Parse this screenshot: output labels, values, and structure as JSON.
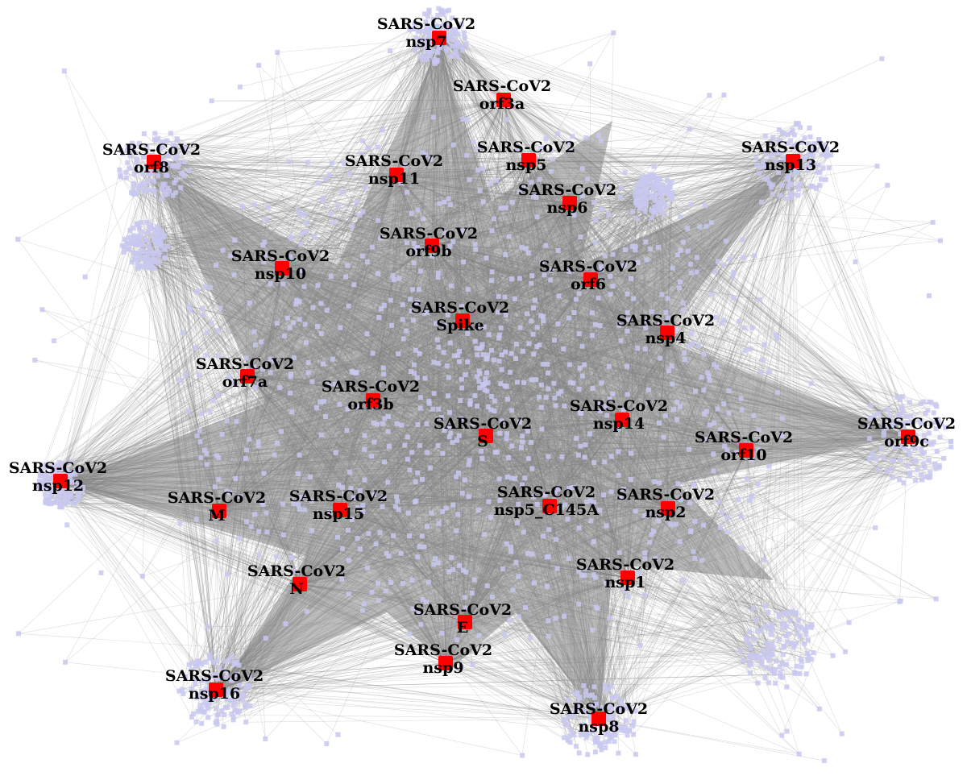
{
  "network": {
    "node_color": "#ff0000",
    "host_node_color": "#c8c8f0",
    "edge_color": "#808080",
    "viral_proteins": [
      {
        "id": "nsp7",
        "line1": "SARS-CoV2",
        "line2": "nsp7"
      },
      {
        "id": "orf3a",
        "line1": "SARS-CoV2",
        "line2": "orf3a"
      },
      {
        "id": "nsp5",
        "line1": "SARS-CoV2",
        "line2": "nsp5"
      },
      {
        "id": "orf8",
        "line1": "SARS-CoV2",
        "line2": "orf8"
      },
      {
        "id": "nsp13",
        "line1": "SARS-CoV2",
        "line2": "nsp13"
      },
      {
        "id": "nsp11",
        "line1": "SARS-CoV2",
        "line2": "nsp11"
      },
      {
        "id": "nsp6",
        "line1": "SARS-CoV2",
        "line2": "nsp6"
      },
      {
        "id": "orf9b",
        "line1": "SARS-CoV2",
        "line2": "orf9b"
      },
      {
        "id": "nsp10",
        "line1": "SARS-CoV2",
        "line2": "nsp10"
      },
      {
        "id": "orf6",
        "line1": "SARS-CoV2",
        "line2": "orf6"
      },
      {
        "id": "spike",
        "line1": "SARS-CoV2",
        "line2": "Spike"
      },
      {
        "id": "nsp4",
        "line1": "SARS-CoV2",
        "line2": "nsp4"
      },
      {
        "id": "orf7a",
        "line1": "SARS-CoV2",
        "line2": "orf7a"
      },
      {
        "id": "orf3b",
        "line1": "SARS-CoV2",
        "line2": "orf3b"
      },
      {
        "id": "nsp14",
        "line1": "SARS-CoV2",
        "line2": "nsp14"
      },
      {
        "id": "orf9c",
        "line1": "SARS-CoV2",
        "line2": "orf9c"
      },
      {
        "id": "s",
        "line1": "SARS-CoV2",
        "line2": "S"
      },
      {
        "id": "orf10",
        "line1": "SARS-CoV2",
        "line2": "orf10"
      },
      {
        "id": "nsp12",
        "line1": "SARS-CoV2",
        "line2": "nsp12"
      },
      {
        "id": "m",
        "line1": "SARS-CoV2",
        "line2": "M"
      },
      {
        "id": "nsp15",
        "line1": "SARS-CoV2",
        "line2": "nsp15"
      },
      {
        "id": "nsp5_c145a",
        "line1": "SARS-CoV2",
        "line2": "nsp5_C145A"
      },
      {
        "id": "nsp2",
        "line1": "SARS-CoV2",
        "line2": "nsp2"
      },
      {
        "id": "n",
        "line1": "SARS-CoV2",
        "line2": "N"
      },
      {
        "id": "nsp1",
        "line1": "SARS-CoV2",
        "line2": "nsp1"
      },
      {
        "id": "e",
        "line1": "SARS-CoV2",
        "line2": "E"
      },
      {
        "id": "nsp9",
        "line1": "SARS-CoV2",
        "line2": "nsp9"
      },
      {
        "id": "nsp16",
        "line1": "SARS-CoV2",
        "line2": "nsp16"
      },
      {
        "id": "nsp8",
        "line1": "SARS-CoV2",
        "line2": "nsp8"
      }
    ]
  }
}
